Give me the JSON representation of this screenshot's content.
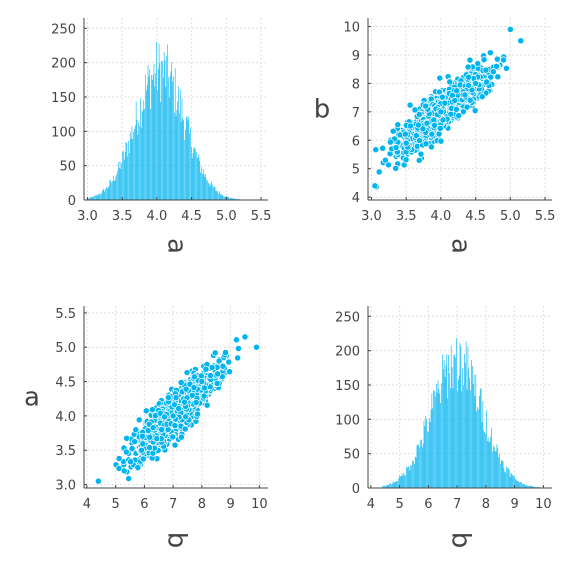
{
  "chart_data": [
    {
      "type": "histogram",
      "xlabel": "a",
      "ylabel": "",
      "xlim": [
        2.95,
        5.6
      ],
      "ylim": [
        0,
        265
      ],
      "xticks": [
        "3.0",
        "3.5",
        "4.0",
        "4.5",
        "5.0",
        "5.5"
      ],
      "yticks": [
        "0",
        "50",
        "100",
        "150",
        "200",
        "250"
      ],
      "grid": true,
      "color": "#00b4f0",
      "approx_peak": {
        "x": 4.05,
        "count": 228
      },
      "approx_range": [
        3.0,
        5.2
      ]
    },
    {
      "type": "scatter",
      "xlabel": "a",
      "ylabel": "b",
      "xlim": [
        2.95,
        5.6
      ],
      "ylim": [
        3.9,
        10.3
      ],
      "xticks": [
        "3.0",
        "3.5",
        "4.0",
        "4.5",
        "5.0",
        "5.5"
      ],
      "yticks": [
        "4",
        "5",
        "6",
        "7",
        "8",
        "9",
        "10"
      ],
      "grid": true,
      "color": "#00b4f0",
      "approx_relation": "b ≈ 2a − 1",
      "approx_points": [
        [
          3.05,
          4.4
        ],
        [
          3.2,
          5.3
        ],
        [
          3.5,
          5.9
        ],
        [
          3.8,
          6.6
        ],
        [
          4.0,
          7.0
        ],
        [
          4.2,
          7.4
        ],
        [
          4.5,
          8.0
        ],
        [
          4.8,
          8.6
        ],
        [
          5.0,
          9.9
        ],
        [
          5.15,
          9.5
        ]
      ]
    },
    {
      "type": "scatter",
      "xlabel": "b",
      "ylabel": "a",
      "xlim": [
        3.9,
        10.3
      ],
      "ylim": [
        2.95,
        5.6
      ],
      "xticks": [
        "4",
        "5",
        "6",
        "7",
        "8",
        "9",
        "10"
      ],
      "yticks": [
        "3.0",
        "3.5",
        "4.0",
        "4.5",
        "5.0",
        "5.5"
      ],
      "grid": true,
      "color": "#00b4f0",
      "approx_relation": "a ≈ (b + 1) / 2",
      "approx_points": [
        [
          4.4,
          3.05
        ],
        [
          5.3,
          3.2
        ],
        [
          5.9,
          3.5
        ],
        [
          6.6,
          3.8
        ],
        [
          7.0,
          4.0
        ],
        [
          7.4,
          4.2
        ],
        [
          8.0,
          4.5
        ],
        [
          8.6,
          4.8
        ],
        [
          9.9,
          5.0
        ],
        [
          9.5,
          5.15
        ]
      ]
    },
    {
      "type": "histogram",
      "xlabel": "b",
      "ylabel": "",
      "xlim": [
        3.9,
        10.3
      ],
      "ylim": [
        0,
        265
      ],
      "xticks": [
        "4",
        "5",
        "6",
        "7",
        "8",
        "9",
        "10"
      ],
      "yticks": [
        "0",
        "50",
        "100",
        "150",
        "200",
        "250"
      ],
      "grid": true,
      "color": "#00b4f0",
      "approx_peak": {
        "x": 7.0,
        "count": 222
      },
      "approx_range": [
        4.4,
        9.9
      ]
    }
  ]
}
